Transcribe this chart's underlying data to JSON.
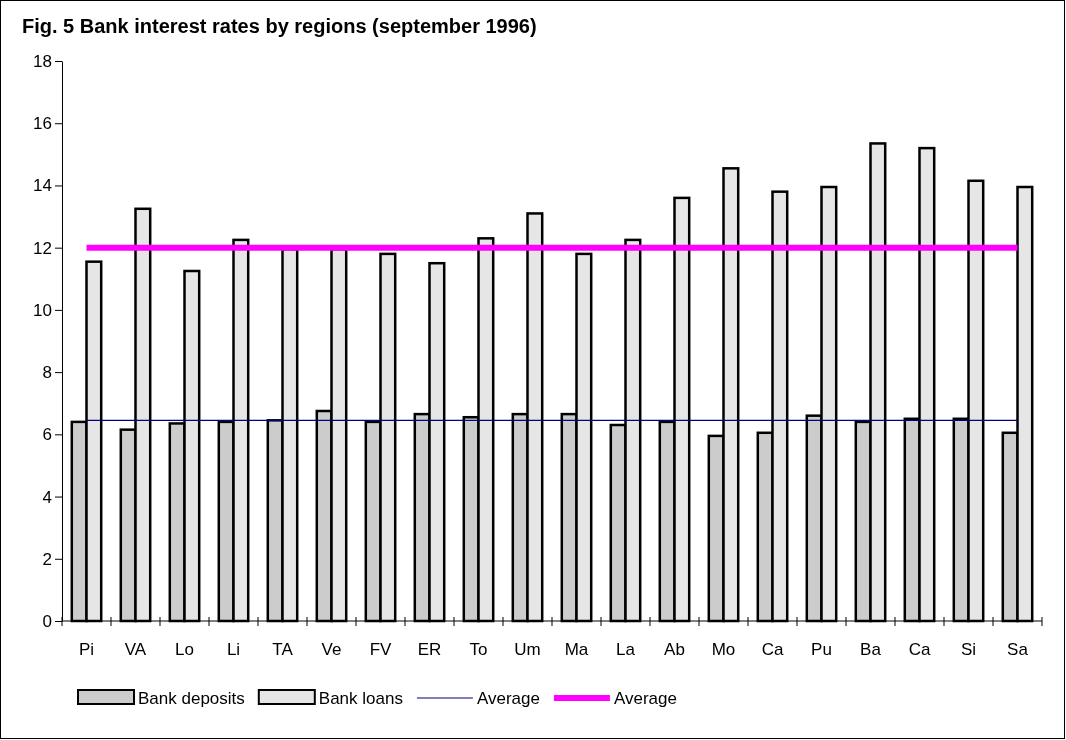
{
  "chart_data": {
    "type": "bar",
    "title": "Fig. 5    Bank interest rates by regions (september 1996)",
    "categories": [
      "Pi",
      "VA",
      "Lo",
      "Li",
      "TA",
      "Ve",
      "FV",
      "ER",
      "To",
      "Um",
      "Ma",
      "La",
      "Ab",
      "Mo",
      "Ca",
      "Pu",
      "Ba",
      "Ca",
      "Si",
      "Sa"
    ],
    "series": [
      {
        "name": "Bank deposits",
        "color": "#cccccc",
        "values": [
          6.4,
          6.15,
          6.35,
          6.4,
          6.45,
          6.75,
          6.4,
          6.65,
          6.55,
          6.65,
          6.65,
          6.3,
          6.4,
          5.95,
          6.05,
          6.6,
          6.4,
          6.5,
          6.5,
          6.05
        ]
      },
      {
        "name": "Bank loans",
        "color": "#e6e6e6",
        "values": [
          11.55,
          13.25,
          11.25,
          12.25,
          11.95,
          11.95,
          11.8,
          11.5,
          12.3,
          13.1,
          11.8,
          12.25,
          13.6,
          14.55,
          13.8,
          13.95,
          15.35,
          15.2,
          14.15,
          13.95
        ]
      },
      {
        "name": "Average",
        "type": "line",
        "color": "#000080",
        "values": [
          6.45,
          6.45,
          6.45,
          6.45,
          6.45,
          6.45,
          6.45,
          6.45,
          6.45,
          6.45,
          6.45,
          6.45,
          6.45,
          6.45,
          6.45,
          6.45,
          6.45,
          6.45,
          6.45,
          6.45
        ]
      },
      {
        "name": "Average",
        "type": "line",
        "color": "#ff00ff",
        "values": [
          12,
          12,
          12,
          12,
          12,
          12,
          12,
          12,
          12,
          12,
          12,
          12,
          12,
          12,
          12,
          12,
          12,
          12,
          12,
          12
        ]
      }
    ],
    "ylim": [
      0,
      18
    ],
    "yticks": [
      0,
      2,
      4,
      6,
      8,
      10,
      12,
      14,
      16,
      18
    ],
    "grid": false,
    "legend": "bottom",
    "marker": "none",
    "line_style": "solid"
  }
}
